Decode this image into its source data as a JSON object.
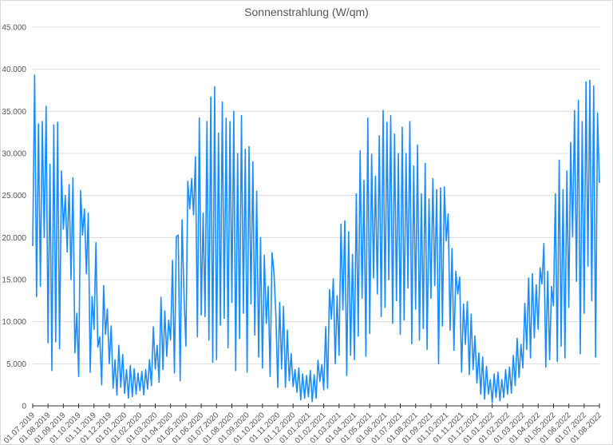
{
  "chart_data": {
    "type": "line",
    "title": "Sonnenstrahlung (W/qm)",
    "xlabel": "",
    "ylabel": "",
    "ylim": [
      0,
      45000
    ],
    "y_ticks": [
      "0",
      "5.000",
      "10.000",
      "15.000",
      "20.000",
      "25.000",
      "30.000",
      "35.000",
      "40.000",
      "45.000"
    ],
    "x_ticks": [
      "01.07.2019",
      "01.08.2019",
      "01.09.2019",
      "01.10.2019",
      "01.11.2019",
      "01.12.2019",
      "01.01.2020",
      "01.02.2020",
      "01.03.2020",
      "01.04.2020",
      "01.05.2020",
      "01.06.2020",
      "01.07.2020",
      "01.08.2020",
      "01.09.2020",
      "01.10.2020",
      "01.11.2020",
      "01.12.2020",
      "01.01.2021",
      "01.02.2021",
      "01.03.2021",
      "01.04.2021",
      "01.05.2021",
      "01.06.2021",
      "01.07.2021",
      "01.08.2021",
      "01.09.2021",
      "01.10.2021",
      "01.11.2021",
      "01.12.2021",
      "01.01.2022",
      "01.02.2022",
      "01.03.2022",
      "01.04.2022",
      "01.05.2022",
      "01.06.2022",
      "01.07.2022",
      "01.08.2022"
    ],
    "grid": true,
    "legend": "none",
    "line_color": "#1a8cff",
    "series": [
      {
        "months": [
          {
            "month": "07.2019",
            "values": [
              19000,
              39300,
              13000,
              33500,
              14200,
              33800,
              20000,
              35600
            ]
          },
          {
            "month": "08.2019",
            "values": [
              7500,
              28700,
              4200,
              33400,
              7600,
              33700,
              6800,
              27900
            ]
          },
          {
            "month": "09.2019",
            "values": [
              21000,
              25000,
              18300,
              26300,
              15000,
              27100,
              6300,
              11000
            ]
          },
          {
            "month": "10.2019",
            "values": [
              3500,
              25600,
              20300,
              23400,
              15700,
              22900,
              4000,
              13000
            ]
          },
          {
            "month": "11.2019",
            "values": [
              9100,
              19400,
              7000,
              8200,
              2500,
              14300,
              8500,
              11500
            ]
          },
          {
            "month": "12.2019",
            "values": [
              5000,
              9500,
              2100,
              5500,
              1300,
              7200,
              2200,
              6100
            ]
          },
          {
            "month": "01.2020",
            "values": [
              1500,
              4300,
              900,
              4800,
              1100,
              4400,
              1400,
              3900
            ]
          },
          {
            "month": "02.2020",
            "values": [
              1800,
              4100,
              1300,
              4300,
              2000,
              5500,
              2400,
              9400
            ]
          },
          {
            "month": "03.2020",
            "values": [
              4400,
              7200,
              2800,
              12900,
              4300,
              11300,
              5900,
              10200
            ]
          },
          {
            "month": "04.2020",
            "values": [
              7800,
              17300,
              3900,
              20100,
              20300,
              3000,
              22100,
              13200
            ]
          },
          {
            "month": "05.2020",
            "values": [
              7100,
              26700,
              23400,
              27000,
              22700,
              29600,
              8200,
              34200
            ]
          },
          {
            "month": "06.2020",
            "values": [
              10800,
              22900,
              10600,
              33800,
              7800,
              36700,
              5200,
              37900
            ]
          },
          {
            "month": "07.2020",
            "values": [
              5500,
              32400,
              9600,
              36100,
              10400,
              34200,
              6900,
              33800
            ]
          },
          {
            "month": "08.2020",
            "values": [
              12300,
              35000,
              4200,
              30000,
              8000,
              34500,
              11000,
              30500
            ]
          },
          {
            "month": "09.2020",
            "values": [
              4000,
              30800,
              12100,
              29000,
              8400,
              25500,
              5800,
              20000
            ]
          },
          {
            "month": "10.2020",
            "values": [
              4500,
              17900,
              9800,
              14200,
              3500,
              18200,
              15900,
              10900
            ]
          },
          {
            "month": "11.2020",
            "values": [
              2200,
              12300,
              4400,
              11800,
              2200,
              9000,
              3000,
              6200
            ]
          },
          {
            "month": "12.2020",
            "values": [
              2300,
              4300,
              1600,
              4500,
              700,
              3800,
              900,
              3600
            ]
          },
          {
            "month": "01.2021",
            "values": [
              1100,
              4200,
              500,
              3700,
              900,
              5400,
              2900,
              4900
            ]
          },
          {
            "month": "02.2021",
            "values": [
              1900,
              9400,
              2100,
              13800,
              10300,
              15100,
              5000,
              13100
            ]
          },
          {
            "month": "03.2021",
            "values": [
              6000,
              21600,
              11400,
              22000,
              3600,
              20700,
              6000,
              18000
            ]
          },
          {
            "month": "04.2021",
            "values": [
              5500,
              25200,
              8300,
              30300,
              12800,
              26800,
              5900,
              34200
            ]
          },
          {
            "month": "05.2021",
            "values": [
              8600,
              29900,
              15200,
              27300,
              13300,
              32100,
              10600,
              35100
            ]
          },
          {
            "month": "06.2021",
            "values": [
              11700,
              33700,
              15000,
              34500,
              9800,
              32300,
              12500,
              30000
            ]
          },
          {
            "month": "07.2021",
            "values": [
              8500,
              33100,
              10200,
              30000,
              14000,
              33800,
              7400,
              28500
            ]
          },
          {
            "month": "08.2021",
            "values": [
              11500,
              31000,
              7800,
              25200,
              9200,
              28800,
              6700,
              24600
            ]
          },
          {
            "month": "09.2021",
            "values": [
              12800,
              27000,
              14300,
              25700,
              5000,
              25900,
              9500,
              26000
            ]
          },
          {
            "month": "10.2021",
            "values": [
              19600,
              22800,
              9000,
              18700,
              6600,
              16000,
              13300,
              15300
            ]
          },
          {
            "month": "11.2021",
            "values": [
              4000,
              12100,
              7300,
              12400,
              3700,
              10900,
              4300,
              8300
            ]
          },
          {
            "month": "12.2021",
            "values": [
              2700,
              6300,
              1400,
              5800,
              800,
              4700,
              1400,
              3100
            ]
          },
          {
            "month": "01.2022",
            "values": [
              400,
              3800,
              1000,
              4000,
              600,
              3100,
              1000,
              4300
            ]
          },
          {
            "month": "02.2022",
            "values": [
              1400,
              4600,
              1500,
              6000,
              2400,
              8000,
              3400,
              7300
            ]
          },
          {
            "month": "03.2022",
            "values": [
              4500,
              12200,
              6700,
              15200,
              5700,
              15700,
              8100,
              14400
            ]
          },
          {
            "month": "04.2022",
            "values": [
              9100,
              16400,
              14500,
              19300,
              4600,
              16000,
              5500,
              14200
            ]
          },
          {
            "month": "05.2022",
            "values": [
              11900,
              25200,
              5300,
              29200,
              7100,
              25700,
              5700,
              27900
            ]
          },
          {
            "month": "06.2022",
            "values": [
              11700,
              31300,
              20100,
              35100,
              14800,
              36300,
              6200,
              33800
            ]
          },
          {
            "month": "07.2022",
            "values": [
              11000,
              38500,
              16600,
              38700,
              12500,
              38000,
              5800,
              34800
            ]
          },
          {
            "month": "08.2022",
            "values": [
              26500
            ]
          }
        ]
      }
    ]
  }
}
